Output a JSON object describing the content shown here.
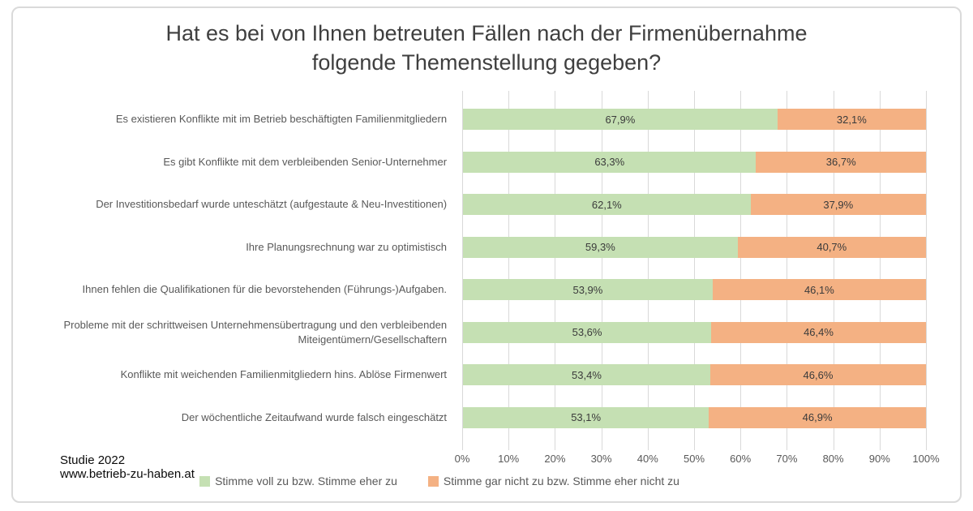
{
  "page": {
    "title_line1": "Hat es bei von Ihnen betreuten Fällen nach der Firmenübernahme",
    "title_line2": "folgende Themenstellung gegeben?",
    "footer": {
      "line1": "Studie 2022",
      "line2": "www.betrieb-zu-haben.at"
    }
  },
  "chart_data": {
    "type": "bar",
    "orientation": "horizontal",
    "stacked": true,
    "title": "Hat es bei von Ihnen betreuten Fällen nach der Firmenübernahme folgende Themenstellung gegeben?",
    "categories": [
      "Es existieren Konflikte mit im Betrieb beschäftigten Familienmitgliedern",
      "Es gibt Konflikte mit dem verbleibenden Senior-Unternehmer",
      "Der Investitionsbedarf wurde unteschätzt (aufgestaute & Neu-Investitionen)",
      "Ihre Planungsrechnung war zu optimistisch",
      "Ihnen fehlen die Qualifikationen für die bevorstehenden (Führungs-)Aufgaben.",
      "Probleme mit der schrittweisen Unternehmensübertragung und den verbleibenden Miteigentümern/Gesellschaftern",
      "Konflikte mit weichenden Familienmitgliedern hins. Ablöse Firmenwert",
      "Der wöchentliche Zeitaufwand wurde falsch eingeschätzt"
    ],
    "series": [
      {
        "name": "Stimme voll zu bzw. Stimme eher zu",
        "color": "#c5e0b3",
        "values": [
          67.9,
          63.3,
          62.1,
          59.3,
          53.9,
          53.6,
          53.4,
          53.1
        ],
        "value_labels": [
          "67,9%",
          "63,3%",
          "62,1%",
          "59,3%",
          "53,9%",
          "53,6%",
          "53,4%",
          "53,1%"
        ]
      },
      {
        "name": "Stimme gar nicht zu bzw. Stimme eher nicht zu",
        "color": "#f4b183",
        "values": [
          32.1,
          36.7,
          37.9,
          40.7,
          46.1,
          46.4,
          46.6,
          46.9
        ],
        "value_labels": [
          "32,1%",
          "36,7%",
          "37,9%",
          "40,7%",
          "46,1%",
          "46,4%",
          "46,6%",
          "46,9%"
        ]
      }
    ],
    "x_axis": {
      "min": 0,
      "max": 100,
      "tick_step": 10,
      "ticks": [
        "0%",
        "10%",
        "20%",
        "30%",
        "40%",
        "50%",
        "60%",
        "70%",
        "80%",
        "90%",
        "100%"
      ],
      "grid": true
    },
    "legend_position": "bottom",
    "gridline_color": "#d9d9d9",
    "label_color": "#595959",
    "data_label_color": "#3b3b3b"
  }
}
